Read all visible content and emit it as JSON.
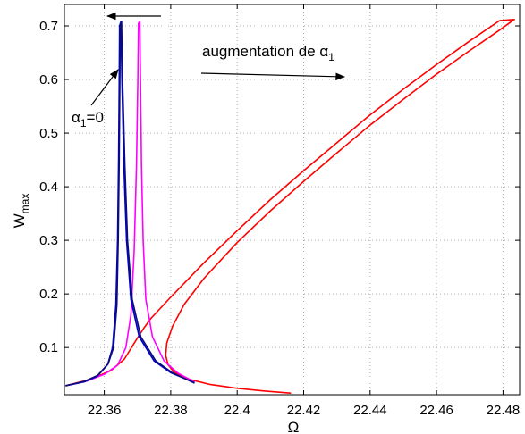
{
  "chart_data": {
    "type": "line",
    "xlabel": "Ω",
    "ylabel": "W",
    "ylabel_sub": "max",
    "xlim": [
      22.348,
      22.485
    ],
    "ylim": [
      0.012,
      0.74
    ],
    "xticks": [
      22.36,
      22.38,
      22.4,
      22.42,
      22.44,
      22.46,
      22.48
    ],
    "xtick_labels": [
      "22.36",
      "22.38",
      "22.4",
      "22.42",
      "22.44",
      "22.46",
      "22.48"
    ],
    "yticks": [
      0.1,
      0.2,
      0.3,
      0.4,
      0.5,
      0.6,
      0.7
    ],
    "ytick_labels": [
      "0.1",
      "0.2",
      "0.3",
      "0.4",
      "0.5",
      "0.6",
      "0.7"
    ],
    "grid": true,
    "colors": {
      "red": "#ff0000",
      "magenta": "#ff00ff",
      "blue": "#0000cc",
      "dark": "#0c0c7a"
    },
    "series": [
      {
        "color": "#ff0000",
        "upper": [
          [
            22.3485,
            0.029
          ],
          [
            22.356,
            0.041
          ],
          [
            22.362,
            0.057
          ],
          [
            22.366,
            0.078
          ],
          [
            22.368,
            0.098
          ],
          [
            22.37,
            0.118
          ],
          [
            22.372,
            0.137
          ],
          [
            22.374,
            0.154
          ],
          [
            22.377,
            0.174
          ],
          [
            22.38,
            0.194
          ],
          [
            22.385,
            0.226
          ],
          [
            22.39,
            0.258
          ],
          [
            22.4,
            0.318
          ],
          [
            22.41,
            0.376
          ],
          [
            22.42,
            0.43
          ],
          [
            22.43,
            0.482
          ],
          [
            22.44,
            0.534
          ],
          [
            22.45,
            0.582
          ],
          [
            22.46,
            0.628
          ],
          [
            22.47,
            0.672
          ],
          [
            22.479,
            0.71
          ],
          [
            22.4834,
            0.712
          ]
        ],
        "lower": [
          [
            22.4834,
            0.712
          ],
          [
            22.478,
            0.688
          ],
          [
            22.47,
            0.654
          ],
          [
            22.46,
            0.61
          ],
          [
            22.45,
            0.563
          ],
          [
            22.44,
            0.515
          ],
          [
            22.43,
            0.463
          ],
          [
            22.42,
            0.41
          ],
          [
            22.41,
            0.355
          ],
          [
            22.4,
            0.296
          ],
          [
            22.39,
            0.229
          ],
          [
            22.384,
            0.18
          ],
          [
            22.3805,
            0.139
          ],
          [
            22.3788,
            0.108
          ],
          [
            22.3785,
            0.085
          ],
          [
            22.3792,
            0.068
          ],
          [
            22.381,
            0.054
          ],
          [
            22.386,
            0.04
          ],
          [
            22.392,
            0.031
          ],
          [
            22.4,
            0.024
          ],
          [
            22.408,
            0.019
          ],
          [
            22.416,
            0.015
          ]
        ]
      },
      {
        "color": "#ff00ff",
        "upper": [
          [
            22.3485,
            0.029
          ],
          [
            22.355,
            0.038
          ],
          [
            22.36,
            0.05
          ],
          [
            22.364,
            0.067
          ],
          [
            22.3665,
            0.1
          ],
          [
            22.368,
            0.16
          ],
          [
            22.369,
            0.28
          ],
          [
            22.3697,
            0.44
          ],
          [
            22.3701,
            0.6
          ],
          [
            22.3703,
            0.705
          ],
          [
            22.3707,
            0.708
          ]
        ],
        "lower": [
          [
            22.3707,
            0.708
          ],
          [
            22.3709,
            0.6
          ],
          [
            22.3712,
            0.44
          ],
          [
            22.3717,
            0.3
          ],
          [
            22.3725,
            0.19
          ],
          [
            22.3745,
            0.12
          ],
          [
            22.378,
            0.075
          ],
          [
            22.382,
            0.053
          ],
          [
            22.387,
            0.036
          ]
        ]
      },
      {
        "color": "#0000cc",
        "upper": [
          [
            22.3485,
            0.029
          ],
          [
            22.354,
            0.036
          ],
          [
            22.358,
            0.047
          ],
          [
            22.361,
            0.068
          ],
          [
            22.3625,
            0.1
          ],
          [
            22.3635,
            0.18
          ],
          [
            22.364,
            0.3
          ],
          [
            22.3643,
            0.45
          ],
          [
            22.3645,
            0.6
          ],
          [
            22.3646,
            0.7
          ],
          [
            22.365,
            0.708
          ]
        ],
        "lower": [
          [
            22.365,
            0.708
          ],
          [
            22.3653,
            0.6
          ],
          [
            22.3659,
            0.44
          ],
          [
            22.3667,
            0.3
          ],
          [
            22.368,
            0.19
          ],
          [
            22.3705,
            0.12
          ],
          [
            22.375,
            0.075
          ],
          [
            22.38,
            0.053
          ],
          [
            22.387,
            0.035
          ]
        ]
      },
      {
        "color": "#0c0c7a",
        "upper": [
          [
            22.3485,
            0.029
          ],
          [
            22.354,
            0.037
          ],
          [
            22.358,
            0.048
          ],
          [
            22.3612,
            0.07
          ],
          [
            22.3628,
            0.1
          ],
          [
            22.3638,
            0.18
          ],
          [
            22.3642,
            0.3
          ],
          [
            22.3645,
            0.45
          ],
          [
            22.3647,
            0.6
          ],
          [
            22.3648,
            0.7
          ],
          [
            22.3652,
            0.708
          ]
        ],
        "lower": [
          [
            22.3652,
            0.708
          ],
          [
            22.3655,
            0.6
          ],
          [
            22.3662,
            0.44
          ],
          [
            22.367,
            0.3
          ],
          [
            22.3684,
            0.19
          ],
          [
            22.371,
            0.12
          ],
          [
            22.3755,
            0.075
          ],
          [
            22.3805,
            0.053
          ],
          [
            22.387,
            0.034
          ]
        ]
      }
    ],
    "annotations": {
      "sweep_text": "augmentation de α",
      "sweep_sub": "1",
      "alpha_text": "α",
      "alpha_sub": "1",
      "alpha_eq": "=0"
    }
  }
}
